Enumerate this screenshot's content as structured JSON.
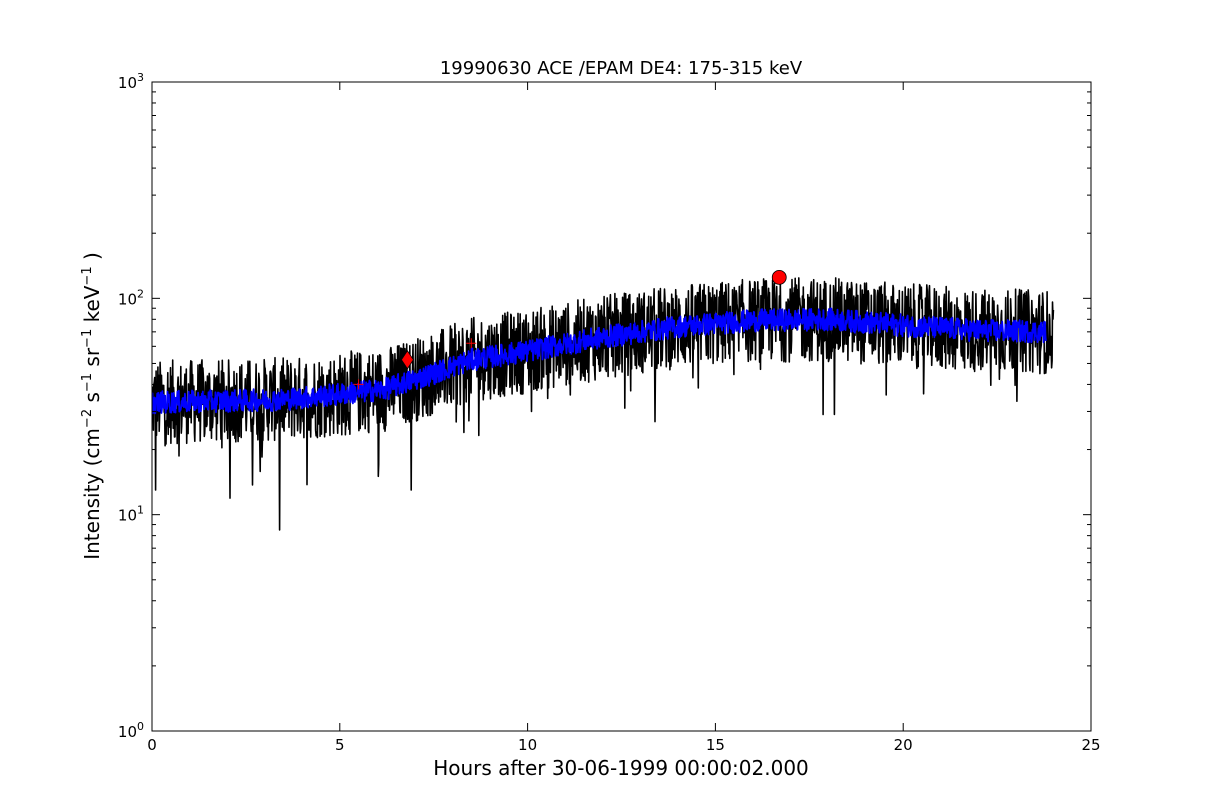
{
  "chart_data": {
    "type": "line",
    "title": "19990630 ACE /EPAM DE4: 175-315 keV",
    "xlabel": "Hours after 30-06-1999 00:00:02.000",
    "ylabel": {
      "text": "Intensity (cm",
      "parts": [
        "−2",
        " s",
        "−1",
        " sr",
        "−1",
        " keV",
        "−1",
        " )"
      ]
    },
    "xlim": [
      0,
      25
    ],
    "ylim": [
      1,
      1000
    ],
    "yscale": "log",
    "x_ticks": [
      "0",
      "5",
      "10",
      "15",
      "20",
      "25"
    ],
    "y_ticks": [
      {
        "base": "10",
        "exp": "0"
      },
      {
        "base": "10",
        "exp": "1"
      },
      {
        "base": "10",
        "exp": "2"
      },
      {
        "base": "10",
        "exp": "3"
      }
    ],
    "grid": false,
    "series": [
      {
        "color": "#000000",
        "x_range": [
          0,
          24.0
        ],
        "noise_factor": 0.45,
        "envelope": [
          [
            0,
            33
          ],
          [
            3.4,
            34
          ],
          [
            5,
            36
          ],
          [
            6.2,
            38
          ],
          [
            7.5,
            45
          ],
          [
            8.5,
            52
          ],
          [
            10,
            57
          ],
          [
            12,
            66
          ],
          [
            14,
            74
          ],
          [
            16,
            79
          ],
          [
            18,
            80
          ],
          [
            20,
            75
          ],
          [
            22,
            71
          ],
          [
            24,
            70
          ]
        ],
        "spikes": [
          [
            0.1,
            13
          ],
          [
            3.4,
            8.5
          ],
          [
            6.9,
            13
          ],
          [
            8.3,
            24
          ],
          [
            10.1,
            30
          ],
          [
            16.2,
            47
          ],
          [
            23.9,
            80
          ]
        ]
      },
      {
        "color": "#0000ff",
        "x_range": [
          0,
          23.8
        ],
        "noise_factor": 0.12,
        "envelope": [
          [
            0,
            33
          ],
          [
            3.4,
            34
          ],
          [
            5,
            36
          ],
          [
            6.2,
            38
          ],
          [
            7.5,
            45
          ],
          [
            8.5,
            52
          ],
          [
            10,
            57
          ],
          [
            12,
            66
          ],
          [
            14,
            74
          ],
          [
            16,
            79
          ],
          [
            18,
            80
          ],
          [
            20,
            75
          ],
          [
            22,
            71
          ],
          [
            24,
            70
          ]
        ]
      }
    ],
    "markers": [
      {
        "shape": "diamond",
        "x": 6.8,
        "y": 52,
        "color": "#ff0000"
      },
      {
        "shape": "circle",
        "x": 16.7,
        "y": 125,
        "color": "#ff0000"
      },
      {
        "shape": "plus",
        "x": 5.5,
        "y": 40,
        "color": "#ff0000"
      },
      {
        "shape": "plus",
        "x": 8.5,
        "y": 62,
        "color": "#ff0000"
      }
    ]
  }
}
